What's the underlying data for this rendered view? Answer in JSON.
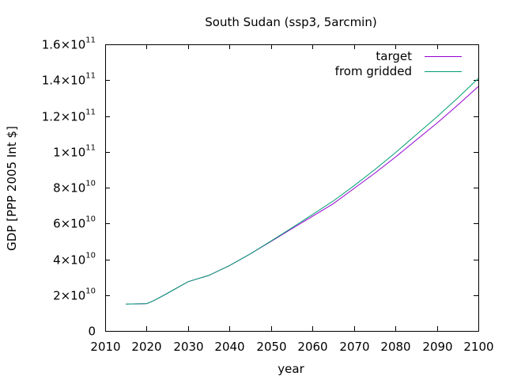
{
  "chart_data": {
    "type": "line",
    "title": "South Sudan (ssp3, 5arcmin)",
    "xlabel": "year",
    "ylabel": "GDP [PPP 2005 Int $]",
    "xlim": [
      2010,
      2100
    ],
    "ylim": [
      0,
      160000000000
    ],
    "grid": false,
    "legend_position": "top-right",
    "x_ticks": [
      {
        "value": 2010,
        "label": "2010"
      },
      {
        "value": 2020,
        "label": "2020"
      },
      {
        "value": 2030,
        "label": "2030"
      },
      {
        "value": 2040,
        "label": "2040"
      },
      {
        "value": 2050,
        "label": "2050"
      },
      {
        "value": 2060,
        "label": "2060"
      },
      {
        "value": 2070,
        "label": "2070"
      },
      {
        "value": 2080,
        "label": "2080"
      },
      {
        "value": 2090,
        "label": "2090"
      },
      {
        "value": 2100,
        "label": "2100"
      }
    ],
    "y_ticks": [
      {
        "value": 0,
        "mant": "0",
        "exp": ""
      },
      {
        "value": 20000000000,
        "mant": "2×10",
        "exp": "10"
      },
      {
        "value": 40000000000,
        "mant": "4×10",
        "exp": "10"
      },
      {
        "value": 60000000000,
        "mant": "6×10",
        "exp": "10"
      },
      {
        "value": 80000000000,
        "mant": "8×10",
        "exp": "10"
      },
      {
        "value": 100000000000,
        "mant": "1×10",
        "exp": "11"
      },
      {
        "value": 120000000000,
        "mant": "1.2×10",
        "exp": "11"
      },
      {
        "value": 140000000000,
        "mant": "1.4×10",
        "exp": "11"
      },
      {
        "value": 160000000000,
        "mant": "1.6×10",
        "exp": "11"
      }
    ],
    "x": [
      2015,
      2020,
      2022,
      2025,
      2030,
      2035,
      2040,
      2045,
      2050,
      2055,
      2060,
      2065,
      2070,
      2075,
      2080,
      2085,
      2090,
      2095,
      2100
    ],
    "series": [
      {
        "name": "target",
        "color": "#9400d3",
        "values": [
          15000000000,
          15200000000,
          17200000000,
          21000000000,
          27500000000,
          31000000000,
          36500000000,
          43000000000,
          50000000000,
          57000000000,
          64000000000,
          71000000000,
          79500000000,
          88000000000,
          97000000000,
          106500000000,
          116000000000,
          126000000000,
          136500000000
        ]
      },
      {
        "name": "from gridded",
        "color": "#009e73",
        "values": [
          15000000000,
          15200000000,
          17200000000,
          21000000000,
          27500000000,
          31000000000,
          36500000000,
          43000000000,
          50200000000,
          57500000000,
          65000000000,
          72500000000,
          81000000000,
          90000000000,
          99500000000,
          109500000000,
          119500000000,
          130000000000,
          141000000000
        ]
      }
    ]
  }
}
